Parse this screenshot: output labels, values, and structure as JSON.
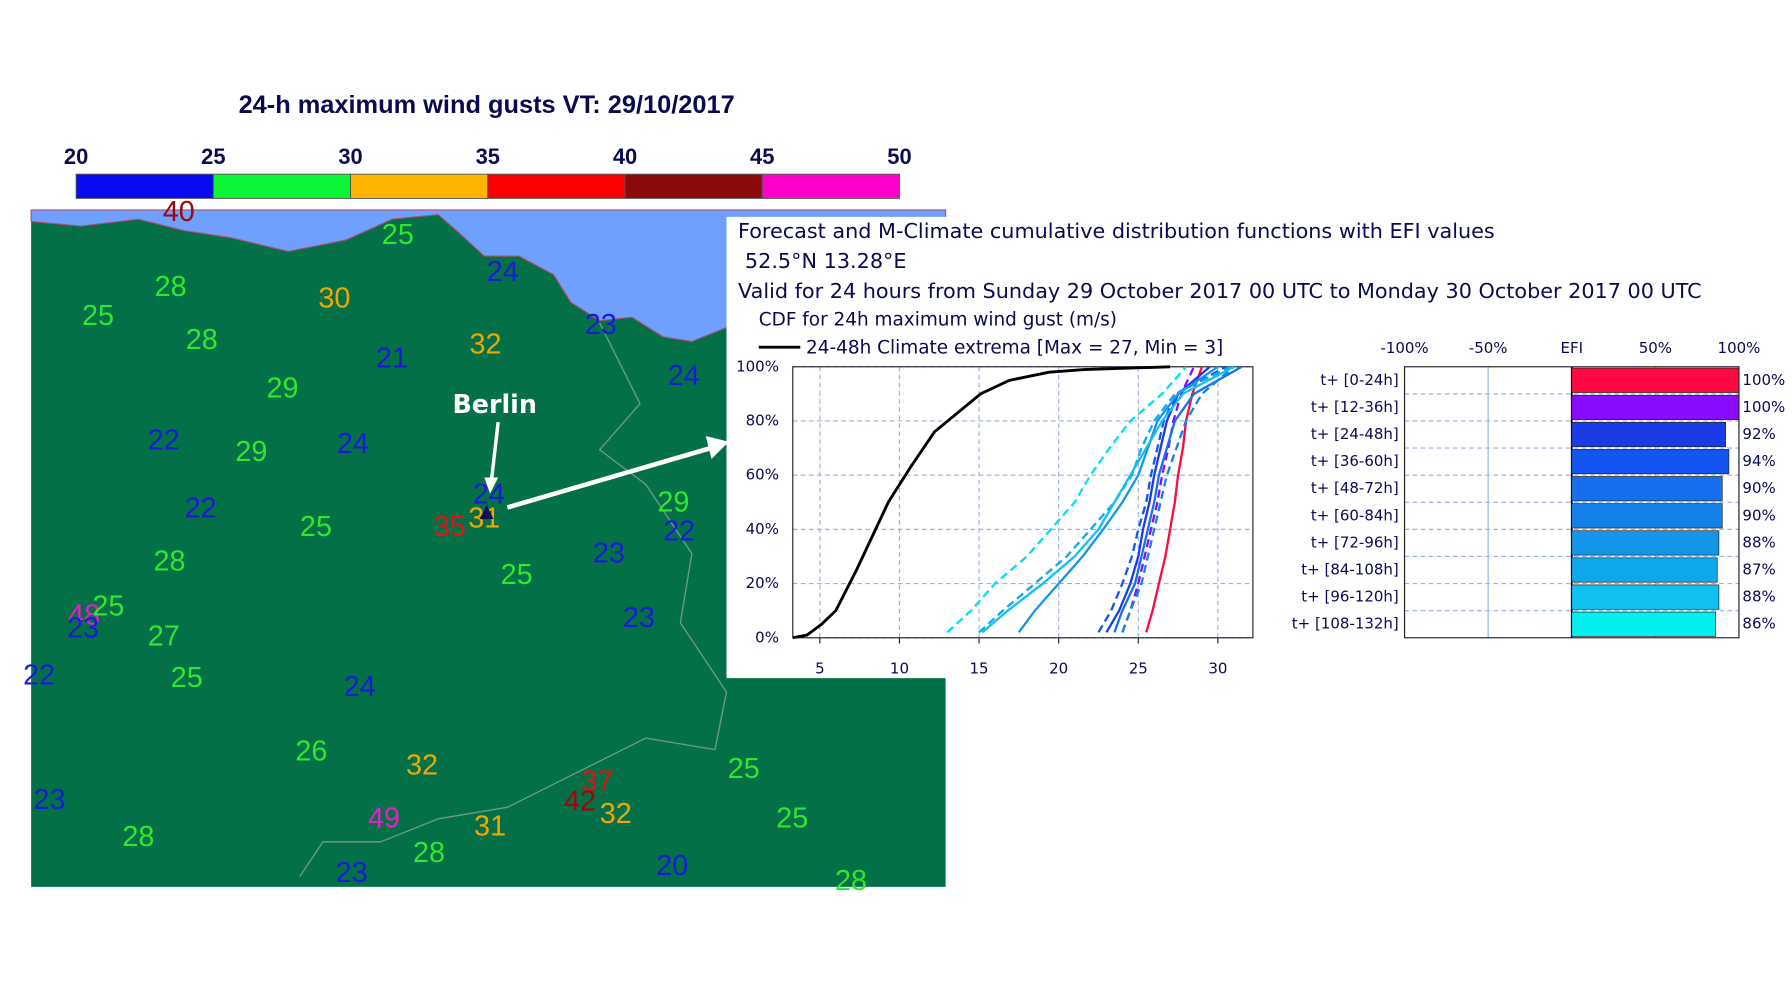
{
  "map": {
    "title": "24-h maximum wind gusts VT: 29/10/2017",
    "colorbar": {
      "ticks": [
        20,
        25,
        30,
        35,
        40,
        45,
        50
      ],
      "colors": [
        "#0a0af0",
        "#0cf536",
        "#ffb400",
        "#fd0000",
        "#8b0a0a",
        "#ff00cc"
      ]
    },
    "text_colors": [
      "#1a1ad8",
      "#2ee82e",
      "#f0a800",
      "#e81010",
      "#9a0a0a",
      "#e81ec8"
    ],
    "stations": [
      40,
      28,
      25,
      30,
      25,
      24,
      23,
      32,
      28,
      21,
      24,
      29,
      22,
      29,
      24,
      22,
      25,
      24,
      35,
      31,
      29,
      22,
      23,
      28,
      25,
      48,
      25,
      23,
      27,
      23,
      22,
      25,
      24,
      26,
      32,
      25,
      37,
      42,
      32,
      25,
      23,
      28,
      49,
      31,
      28,
      20,
      23,
      28
    ],
    "city": "Berlin"
  },
  "chart_data": [
    {
      "type": "line",
      "title": "Forecast and M-Climate cumulative distribution functions with EFI values",
      "subtitle": [
        "52.5°N 13.28°E",
        "Valid for 24 hours from Sunday 29 October 2017 00 UTC to Monday 30 October 2017 00 UTC"
      ],
      "legend_title": "CDF for 24h maximum wind gust (m/s)",
      "xlim": [
        3.3,
        32.2
      ],
      "xticks": [
        5,
        10,
        15,
        20,
        25,
        30
      ],
      "ylim": [
        0,
        100
      ],
      "yticks": [
        {
          "value": 0,
          "label": "0%"
        },
        {
          "value": 20,
          "label": "20%"
        },
        {
          "value": 40,
          "label": "40%"
        },
        {
          "value": 60,
          "label": "60%"
        },
        {
          "value": 80,
          "label": "80%"
        },
        {
          "value": 100,
          "label": "100%"
        }
      ],
      "grid": true,
      "series": [
        {
          "name": "24-48h Climate extrema [Max = 27, Min = 3]",
          "color": "#000000",
          "dash": false,
          "x": [
            3.3,
            4.2,
            5.1,
            6,
            7.3,
            9.3,
            10.7,
            12.2,
            15.1,
            16.9,
            19.4,
            21.6,
            27
          ],
          "values": [
            0,
            1,
            5,
            10,
            25,
            50,
            63,
            76,
            90,
            95,
            98,
            99,
            100
          ]
        },
        {
          "color": "#ff0844",
          "dash": false,
          "x": [
            25.5,
            25.9,
            26.3,
            26.7,
            27,
            27.3,
            27.5,
            27.8,
            28,
            28.4,
            29
          ],
          "values": [
            2,
            10,
            20,
            30,
            40,
            50,
            60,
            70,
            80,
            90,
            100
          ]
        },
        {
          "color": "#8a0cff",
          "dash": true,
          "x": [
            24,
            24.5,
            25,
            25.4,
            25.8,
            26.2,
            26.5,
            26.9,
            27.2,
            27.7,
            28.5
          ],
          "values": [
            2,
            10,
            20,
            30,
            40,
            50,
            60,
            70,
            80,
            90,
            100
          ]
        },
        {
          "color": "#1a3ce6",
          "dash": false,
          "x": [
            23,
            23.8,
            24.5,
            25,
            25.3,
            25.7,
            26,
            26.4,
            26.8,
            27.5,
            29.5
          ],
          "values": [
            2,
            10,
            20,
            30,
            40,
            50,
            60,
            70,
            80,
            90,
            100
          ]
        },
        {
          "color": "#1255f0",
          "dash": true,
          "x": [
            22.5,
            23.3,
            24,
            24.6,
            25,
            25.5,
            25.8,
            26.2,
            26.6,
            27.4,
            30.5
          ],
          "values": [
            2,
            10,
            20,
            30,
            40,
            50,
            60,
            70,
            80,
            90,
            100
          ]
        },
        {
          "color": "#1570f0",
          "dash": false,
          "x": [
            23.5,
            24,
            24.8,
            25.2,
            25.6,
            26,
            26.3,
            26.8,
            27.3,
            28.5,
            31.5
          ],
          "values": [
            2,
            10,
            20,
            30,
            40,
            50,
            60,
            70,
            80,
            90,
            100
          ]
        },
        {
          "color": "#1480ea",
          "dash": true,
          "x": [
            24,
            24.5,
            25.2,
            25.6,
            26,
            26.4,
            26.8,
            27.4,
            28,
            29,
            31
          ],
          "values": [
            2,
            10,
            20,
            30,
            40,
            50,
            60,
            70,
            80,
            90,
            100
          ]
        },
        {
          "color": "#1595e8",
          "dash": false,
          "x": [
            17.5,
            18.5,
            20,
            21.5,
            22.8,
            24,
            25,
            25.6,
            26.2,
            27.5,
            30
          ],
          "values": [
            2,
            10,
            20,
            30,
            40,
            50,
            60,
            70,
            80,
            90,
            100
          ]
        },
        {
          "color": "#10a8ec",
          "dash": true,
          "x": [
            15,
            16.5,
            18.5,
            20.5,
            22,
            23.5,
            24.6,
            25.2,
            26,
            27.3,
            30.8
          ],
          "values": [
            2,
            10,
            20,
            30,
            40,
            50,
            60,
            70,
            80,
            90,
            100
          ]
        },
        {
          "color": "#10c0f0",
          "dash": false,
          "x": [
            15.2,
            16.8,
            19,
            21,
            22.5,
            23.5,
            24.5,
            25.5,
            26.5,
            27.8,
            31
          ],
          "values": [
            2,
            10,
            20,
            30,
            40,
            50,
            60,
            70,
            80,
            90,
            100
          ]
        },
        {
          "color": "#00e0f0",
          "dash": true,
          "x": [
            13,
            14.5,
            16,
            18,
            19.5,
            21,
            22,
            23.2,
            24.5,
            26.5,
            28
          ],
          "values": [
            2,
            10,
            20,
            30,
            40,
            50,
            60,
            70,
            80,
            90,
            100
          ]
        }
      ]
    },
    {
      "type": "barh",
      "categories": [
        "t+ [0-24h]",
        "t+ [12-36h]",
        "t+ [24-48h]",
        "t+ [36-60h]",
        "t+ [48-72h]",
        "t+ [60-84h]",
        "t+ [72-96h]",
        "t+ [84-108h]",
        "t+ [96-120h]",
        "t+ [108-132h]"
      ],
      "values": [
        100,
        100,
        92,
        94,
        90,
        90,
        88,
        87,
        88,
        86
      ],
      "value_labels": [
        "100%",
        "100%",
        "92%",
        "94%",
        "90%",
        "90%",
        "88%",
        "87%",
        "88%",
        "86%"
      ],
      "colors": [
        "#ff0844",
        "#8a0cff",
        "#1a3ce6",
        "#1255f0",
        "#1570f0",
        "#1480ea",
        "#1595e8",
        "#10a8ec",
        "#10c0f0",
        "#00f0f0"
      ],
      "xlim": [
        -100,
        100
      ],
      "xticks": [
        {
          "value": -100,
          "label": "-100%"
        },
        {
          "value": -50,
          "label": "-50%"
        },
        {
          "value": 0,
          "label": "EFI"
        },
        {
          "value": 50,
          "label": "50%"
        },
        {
          "value": 100,
          "label": "100%"
        }
      ],
      "grid": true
    }
  ]
}
